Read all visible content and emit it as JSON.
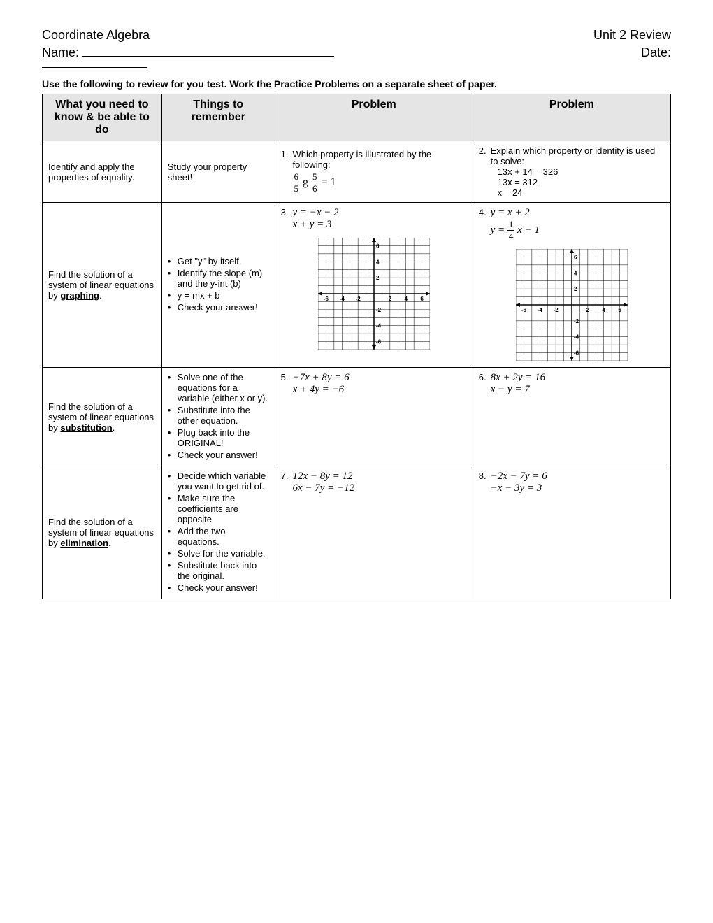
{
  "header": {
    "left": "Coordinate Algebra",
    "right": "Unit 2 Review",
    "nameLabel": "Name:",
    "dateLabel": "Date:"
  },
  "instructions": "Use the following to review for you test.  Work the Practice Problems on a separate sheet of paper.",
  "columns": {
    "c1": "What you need to know & be able to do",
    "c2": "Things to remember",
    "c3": "Problem",
    "c4": "Problem"
  },
  "rows": [
    {
      "need": "Identify and apply the properties of equality.",
      "remember_text": "Study your property sheet!",
      "p1": {
        "num": "1.",
        "text": "Which property is illustrated by the following:",
        "eq_html": "<span class='frac'><span class='top'>6</span><span class='bot'>5</span></span> g <span class='frac'><span class='top'>5</span><span class='bot'>6</span></span> = 1"
      },
      "p2": {
        "num": "2.",
        "text": "Explain which property or identity is used to solve:",
        "lines": [
          "13x + 14 = 326",
          "13x = 312",
          "x = 24"
        ]
      }
    },
    {
      "need_html": "Find the solution of a system of linear equations by <span class='uline'><b>graphing</b></span>.",
      "remember_list": [
        "Get \"y\" by itself.",
        "Identify the slope (m) and the y-int (b)",
        "y = mx + b",
        "Check your answer!"
      ],
      "p1": {
        "num": "3.",
        "eq_lines": [
          "y = −x − 2",
          "x + y = 3"
        ],
        "grid": true
      },
      "p2": {
        "num": "4.",
        "eq_lines_html": [
          "<i>y</i> = <i>x</i> + 2",
          "<i>y</i> = <span class='frac'><span class='top'>1</span><span class='bot'>4</span></span> <i>x</i> − 1"
        ],
        "grid": true
      }
    },
    {
      "need_html": "Find the solution of a system of linear equations by <span class='uline'><b>substitution</b></span>.",
      "remember_list": [
        "Solve one of the equations for a variable (either x or y).",
        "Substitute into the other equation.",
        "Plug back into the ORIGINAL!",
        "Check your answer!"
      ],
      "p1": {
        "num": "5.",
        "eq_lines": [
          "−7x + 8y = 6",
          "x + 4y = −6"
        ]
      },
      "p2": {
        "num": "6.",
        "eq_lines": [
          "8x + 2y = 16",
          "x − y = 7"
        ]
      }
    },
    {
      "need_html": "Find the solution of a system of linear equations by <span class='uline'><b>elimination</b></span>.",
      "remember_list": [
        "Decide which variable you want to get rid of.",
        "Make sure the coefficients are opposite",
        "Add the two equations.",
        "Solve for the variable.",
        "Substitute back into the original.",
        "Check your answer!"
      ],
      "p1": {
        "num": "7.",
        "eq_lines": [
          "12x − 8y = 12",
          "6x − 7y = −12"
        ]
      },
      "p2": {
        "num": "8.",
        "eq_lines": [
          "−2x − 7y = 6",
          "−x − 3y = 3"
        ]
      }
    }
  ],
  "grid": {
    "size": 160,
    "range": 7,
    "ticks": [
      -6,
      -4,
      -2,
      2,
      4,
      6
    ],
    "tick_fontsize": 8,
    "axis_color": "#000000",
    "grid_color": "#000000",
    "grid_stroke": 0.5
  }
}
